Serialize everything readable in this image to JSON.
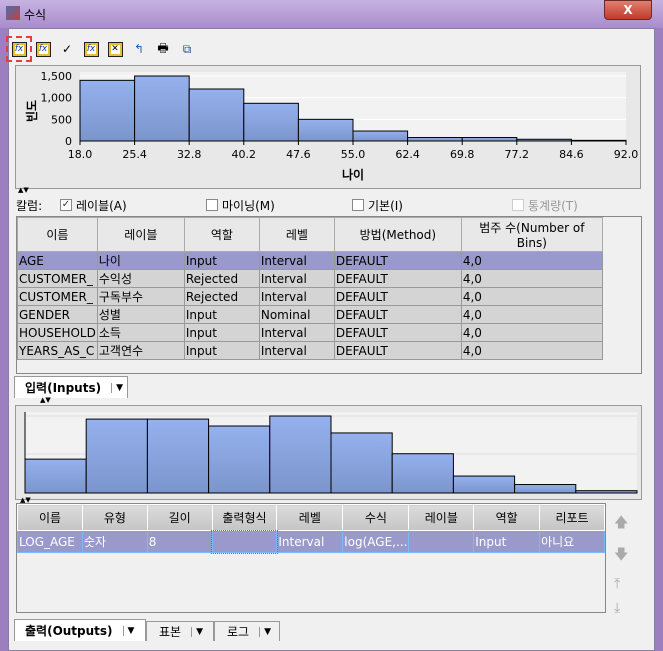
{
  "window": {
    "title": "수식",
    "close_label": "X"
  },
  "toolbar": {
    "icons": [
      "formula-builder-icon",
      "formula-edit-icon",
      "check-icon",
      "add-column-icon",
      "delete-column-icon",
      "refresh-icon",
      "print-icon",
      "copy-icon"
    ],
    "check_glyph": "✓"
  },
  "chart_data": [
    {
      "type": "bar",
      "xlabel": "나이",
      "ylabel": "빈도",
      "x_ticks": [
        "18.0",
        "25.4",
        "32.8",
        "40.2",
        "47.6",
        "55.0",
        "62.4",
        "69.8",
        "77.2",
        "84.6",
        "92.0"
      ],
      "y_ticks": [
        "0",
        "500",
        "1,000",
        "1,500"
      ],
      "ylim": [
        0,
        1500
      ],
      "values": [
        1400,
        1500,
        1200,
        870,
        500,
        230,
        80,
        80,
        40,
        15
      ],
      "bar_color": "#8aa6e0",
      "grid": true
    },
    {
      "type": "bar",
      "values": [
        0.44,
        0.96,
        0.96,
        0.87,
        1.0,
        0.78,
        0.51,
        0.22,
        0.11,
        0.03
      ],
      "bar_color": "#8aa6e0",
      "grid": true
    }
  ],
  "columns_row": {
    "label": "칼럼:",
    "options": [
      {
        "label": "레이블(A)",
        "checked": true
      },
      {
        "label": "마이닝(M)",
        "checked": false
      },
      {
        "label": "기본(I)",
        "checked": false
      },
      {
        "label": "통계량(T)",
        "checked": false,
        "disabled": true
      }
    ]
  },
  "inputs": {
    "headers": [
      "이름",
      "레이블",
      "역할",
      "레벨",
      "방법(Method)",
      "범주 수(Number of Bins)"
    ],
    "rows": [
      [
        "AGE",
        "나이",
        "Input",
        "Interval",
        "DEFAULT",
        "4,0"
      ],
      [
        "CUSTOMER_",
        "수익성",
        "Rejected",
        "Interval",
        "DEFAULT",
        "4,0"
      ],
      [
        "CUSTOMER_",
        "구독부수",
        "Rejected",
        "Interval",
        "DEFAULT",
        "4,0"
      ],
      [
        "GENDER",
        "성별",
        "Input",
        "Nominal",
        "DEFAULT",
        "4,0"
      ],
      [
        "HOUSEHOLD",
        "소득",
        "Input",
        "Interval",
        "DEFAULT",
        "4,0"
      ],
      [
        "YEARS_AS_C",
        "고객연수",
        "Input",
        "Interval",
        "DEFAULT",
        "4,0"
      ]
    ],
    "tab": "입력(Inputs)"
  },
  "outputs": {
    "headers": [
      "이름",
      "유형",
      "길이",
      "출력형식",
      "레벨",
      "수식",
      "레이블",
      "역할",
      "리포트"
    ],
    "rows": [
      [
        "LOG_AGE",
        "숫자",
        "8",
        "",
        "Interval",
        "log(AGE,...",
        "",
        "Input",
        "아니요"
      ]
    ],
    "tabs": [
      "출력(Outputs)",
      "표본",
      "로그"
    ]
  },
  "side_buttons": [
    "move-up",
    "move-down",
    "move-top",
    "move-bottom"
  ],
  "side_glyphs": [
    "🡅",
    "🡇",
    "⤒",
    "⤓"
  ]
}
